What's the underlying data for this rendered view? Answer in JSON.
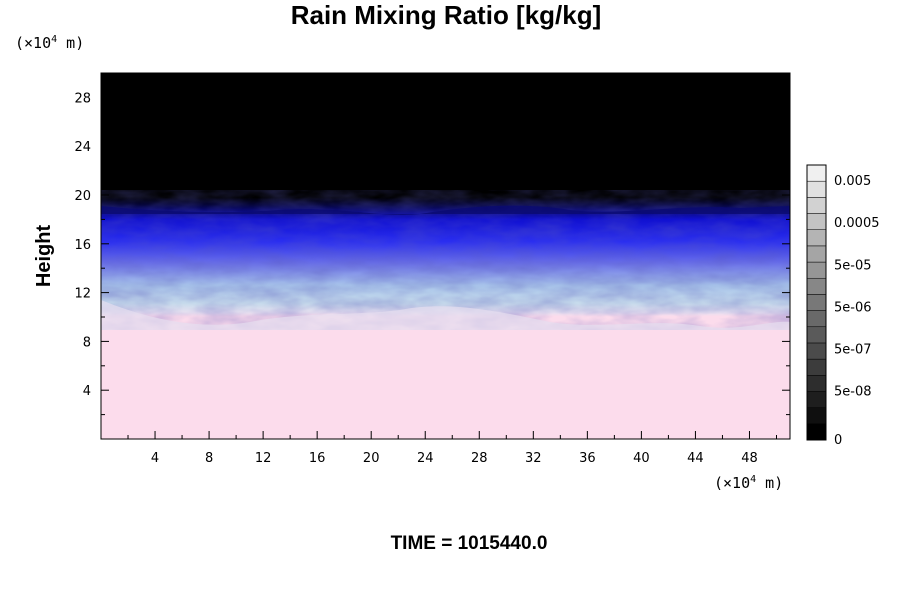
{
  "chart_data": {
    "type": "heatmap",
    "title": "Rain Mixing Ratio [kg/kg]",
    "ylabel": "Height",
    "x_unit_prefix": "(×10",
    "x_unit_exp": "4",
    "x_unit_suffix": " m)",
    "y_unit_prefix": "(×10",
    "y_unit_exp": "4",
    "y_unit_suffix": " m)",
    "xlim": [
      0,
      51
    ],
    "ylim": [
      0,
      30
    ],
    "x_ticks": [
      4,
      8,
      12,
      16,
      20,
      24,
      28,
      32,
      36,
      40,
      44,
      48
    ],
    "y_ticks": [
      4,
      8,
      12,
      16,
      20,
      24,
      28
    ],
    "x_tick_labels": [
      "4",
      "8",
      "12",
      "16",
      "20",
      "24",
      "28",
      "32",
      "36",
      "40",
      "44",
      "48"
    ],
    "y_tick_labels": [
      "4",
      "8",
      "12",
      "16",
      "20",
      "24",
      "28"
    ],
    "layers": [
      {
        "from_y": 0,
        "to_y": 10,
        "color": "#fcdcec"
      },
      {
        "from_y": 10,
        "to_y": 13.5,
        "color": "#b9d0ec"
      },
      {
        "from_y": 13.5,
        "to_y": 16,
        "color": "#4d4ff0"
      },
      {
        "from_y": 16,
        "to_y": 19.5,
        "color": "#0c0cd0"
      },
      {
        "from_y": 19.5,
        "to_y": 30,
        "color": "#000000"
      }
    ],
    "colorbar": {
      "levels": 17,
      "labels": [
        "0.005",
        "0.0005",
        "5e-05",
        "5e-06",
        "5e-07",
        "5e-08",
        "0"
      ]
    },
    "annotation": "TIME = 1015440.0",
    "grid": false
  }
}
